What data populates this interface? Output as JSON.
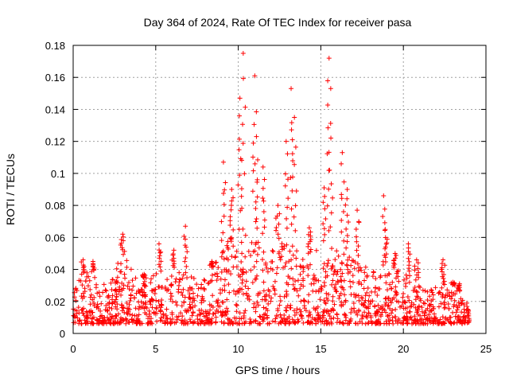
{
  "chart_data": {
    "type": "scatter",
    "title": "Day 364 of 2024, Rate Of TEC Index for receiver pasa",
    "xlabel": "GPS time / hours",
    "ylabel": "ROTI / TECUs",
    "xlim": [
      0,
      25
    ],
    "ylim": [
      0,
      0.18
    ],
    "x_ticks": [
      0,
      5,
      10,
      15,
      20,
      25
    ],
    "x_tick_labels": [
      "0",
      "5",
      "10",
      "15",
      "20",
      "25"
    ],
    "y_ticks": [
      0,
      0.02,
      0.04,
      0.06,
      0.08,
      0.1,
      0.12,
      0.14,
      0.16,
      0.18
    ],
    "y_tick_labels": [
      "0",
      "0.02",
      "0.04",
      "0.06",
      "0.08",
      "0.1",
      "0.12",
      "0.14",
      "0.16",
      "0.18"
    ],
    "grid": true,
    "marker": "+",
    "marker_color": "#ff0000",
    "series": [
      {
        "x_range": [
          0,
          24
        ],
        "baseline_envelope": [
          {
            "x": 0.0,
            "y": 0.03
          },
          {
            "x": 1.0,
            "y": 0.04
          },
          {
            "x": 2.0,
            "y": 0.03
          },
          {
            "x": 3.0,
            "y": 0.05
          },
          {
            "x": 4.0,
            "y": 0.032
          },
          {
            "x": 5.0,
            "y": 0.04
          },
          {
            "x": 6.5,
            "y": 0.04
          },
          {
            "x": 8.0,
            "y": 0.035
          },
          {
            "x": 9.0,
            "y": 0.05
          },
          {
            "x": 10.0,
            "y": 0.07
          },
          {
            "x": 11.0,
            "y": 0.06
          },
          {
            "x": 12.0,
            "y": 0.055
          },
          {
            "x": 13.0,
            "y": 0.06
          },
          {
            "x": 14.0,
            "y": 0.05
          },
          {
            "x": 15.5,
            "y": 0.055
          },
          {
            "x": 16.5,
            "y": 0.05
          },
          {
            "x": 18.0,
            "y": 0.04
          },
          {
            "x": 19.0,
            "y": 0.04
          },
          {
            "x": 20.0,
            "y": 0.04
          },
          {
            "x": 21.0,
            "y": 0.03
          },
          {
            "x": 22.0,
            "y": 0.035
          },
          {
            "x": 23.0,
            "y": 0.03
          },
          {
            "x": 24.0,
            "y": 0.02
          }
        ],
        "spikes": [
          {
            "x": 0.6,
            "y": 0.046
          },
          {
            "x": 1.2,
            "y": 0.045
          },
          {
            "x": 3.0,
            "y": 0.062
          },
          {
            "x": 4.3,
            "y": 0.037
          },
          {
            "x": 5.2,
            "y": 0.056
          },
          {
            "x": 6.1,
            "y": 0.052
          },
          {
            "x": 6.8,
            "y": 0.067
          },
          {
            "x": 8.4,
            "y": 0.045
          },
          {
            "x": 9.1,
            "y": 0.107
          },
          {
            "x": 9.6,
            "y": 0.09
          },
          {
            "x": 10.1,
            "y": 0.147
          },
          {
            "x": 10.3,
            "y": 0.175
          },
          {
            "x": 11.0,
            "y": 0.161
          },
          {
            "x": 11.1,
            "y": 0.123
          },
          {
            "x": 11.5,
            "y": 0.104
          },
          {
            "x": 12.4,
            "y": 0.08
          },
          {
            "x": 12.9,
            "y": 0.12
          },
          {
            "x": 13.2,
            "y": 0.153
          },
          {
            "x": 13.4,
            "y": 0.135
          },
          {
            "x": 14.3,
            "y": 0.066
          },
          {
            "x": 15.2,
            "y": 0.091
          },
          {
            "x": 15.5,
            "y": 0.172
          },
          {
            "x": 15.6,
            "y": 0.153
          },
          {
            "x": 16.3,
            "y": 0.113
          },
          {
            "x": 16.6,
            "y": 0.09
          },
          {
            "x": 17.2,
            "y": 0.077
          },
          {
            "x": 18.8,
            "y": 0.086
          },
          {
            "x": 18.9,
            "y": 0.065
          },
          {
            "x": 19.5,
            "y": 0.05
          },
          {
            "x": 20.3,
            "y": 0.056
          },
          {
            "x": 20.8,
            "y": 0.046
          },
          {
            "x": 22.4,
            "y": 0.046
          },
          {
            "x": 23.0,
            "y": 0.032
          },
          {
            "x": 23.4,
            "y": 0.031
          }
        ]
      }
    ]
  }
}
